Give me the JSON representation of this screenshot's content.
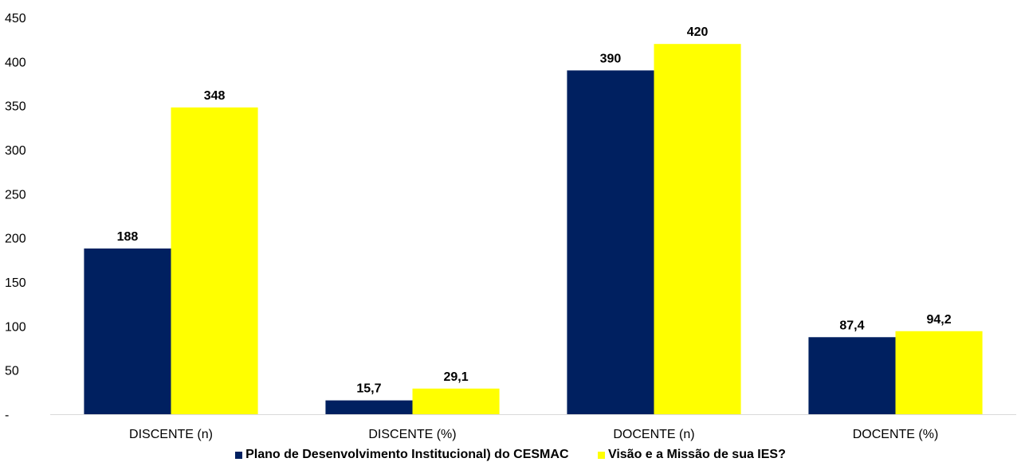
{
  "chart_data": {
    "type": "bar",
    "categories": [
      "DISCENTE (n)",
      "DISCENTE (%)",
      "DOCENTE (n)",
      "DOCENTE (%)"
    ],
    "series": [
      {
        "name": "Plano de Desenvolvimento Institucional) do CESMAC",
        "color": "#002060",
        "values": [
          188,
          15.7,
          390,
          87.4
        ],
        "labels": [
          "188",
          "15,7",
          "390",
          "87,4"
        ]
      },
      {
        "name": "Visão e a Missão de sua IES?",
        "color": "#FFFF00",
        "values": [
          348,
          29.1,
          420,
          94.2
        ],
        "labels": [
          "348",
          "29,1",
          "420",
          "94,2"
        ]
      }
    ],
    "yticks": [
      0,
      50,
      100,
      150,
      200,
      250,
      300,
      350,
      400,
      450
    ],
    "ytick_labels": [
      "-",
      "50",
      "100",
      "150",
      "200",
      "250",
      "300",
      "350",
      "400",
      "450"
    ],
    "ylim": [
      0,
      450
    ],
    "grid": false,
    "legend_position": "bottom",
    "title": "",
    "xlabel": "",
    "ylabel": ""
  }
}
